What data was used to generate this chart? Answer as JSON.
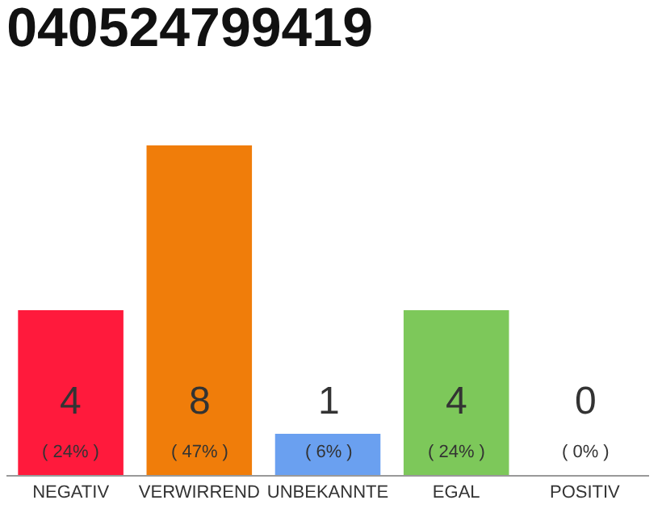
{
  "chart_data": {
    "type": "bar",
    "title": "040524799419",
    "categories": [
      "NEGATIV",
      "VERWIRREND",
      "UNBEKANNTE",
      "EGAL",
      "POSITIV"
    ],
    "values": [
      4,
      8,
      1,
      4,
      0
    ],
    "colors": [
      "#ff1a3c",
      "#f07d0a",
      "#6aa0f0",
      "#7dc85a",
      "#cccccc"
    ],
    "value_labels": [
      "4\n( 24% )",
      "8\n( 47% )",
      "1\n( 6% )",
      "4\n( 24% )",
      "0\n( 0% )"
    ],
    "ylim": [
      0,
      8
    ],
    "tick_labels": "x",
    "legend": false
  }
}
